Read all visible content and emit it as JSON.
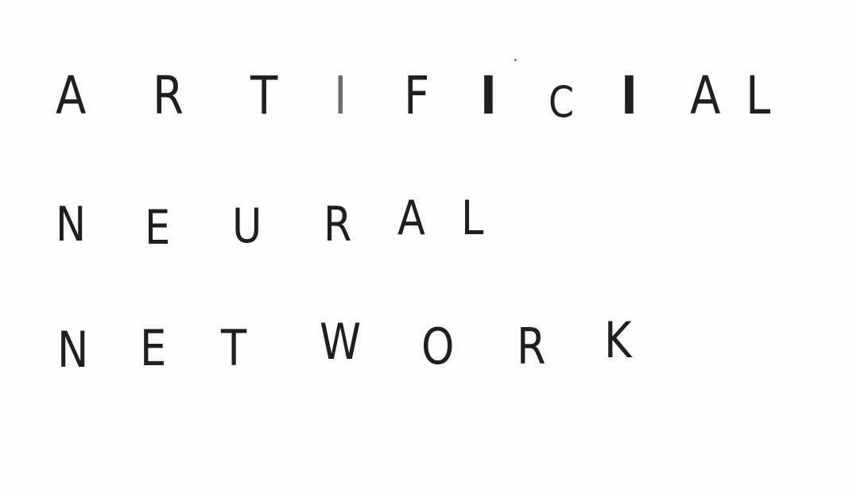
{
  "lines": [
    {
      "text": "ARTIFICIAL",
      "letters": [
        "A",
        "R",
        "T",
        "I",
        "F",
        "I",
        "C",
        "I",
        "A",
        "L"
      ]
    },
    {
      "text": "NEURAL",
      "letters": [
        "N",
        "E",
        "U",
        "R",
        "A",
        "L"
      ]
    },
    {
      "text": "NETWORK",
      "letters": [
        "N",
        "E",
        "T",
        "W",
        "O",
        "R",
        "K"
      ]
    }
  ],
  "colors": {
    "ink": "#1f1f1f",
    "faded_ink": "#6f6f6f",
    "paper": "#fdfdfd"
  }
}
